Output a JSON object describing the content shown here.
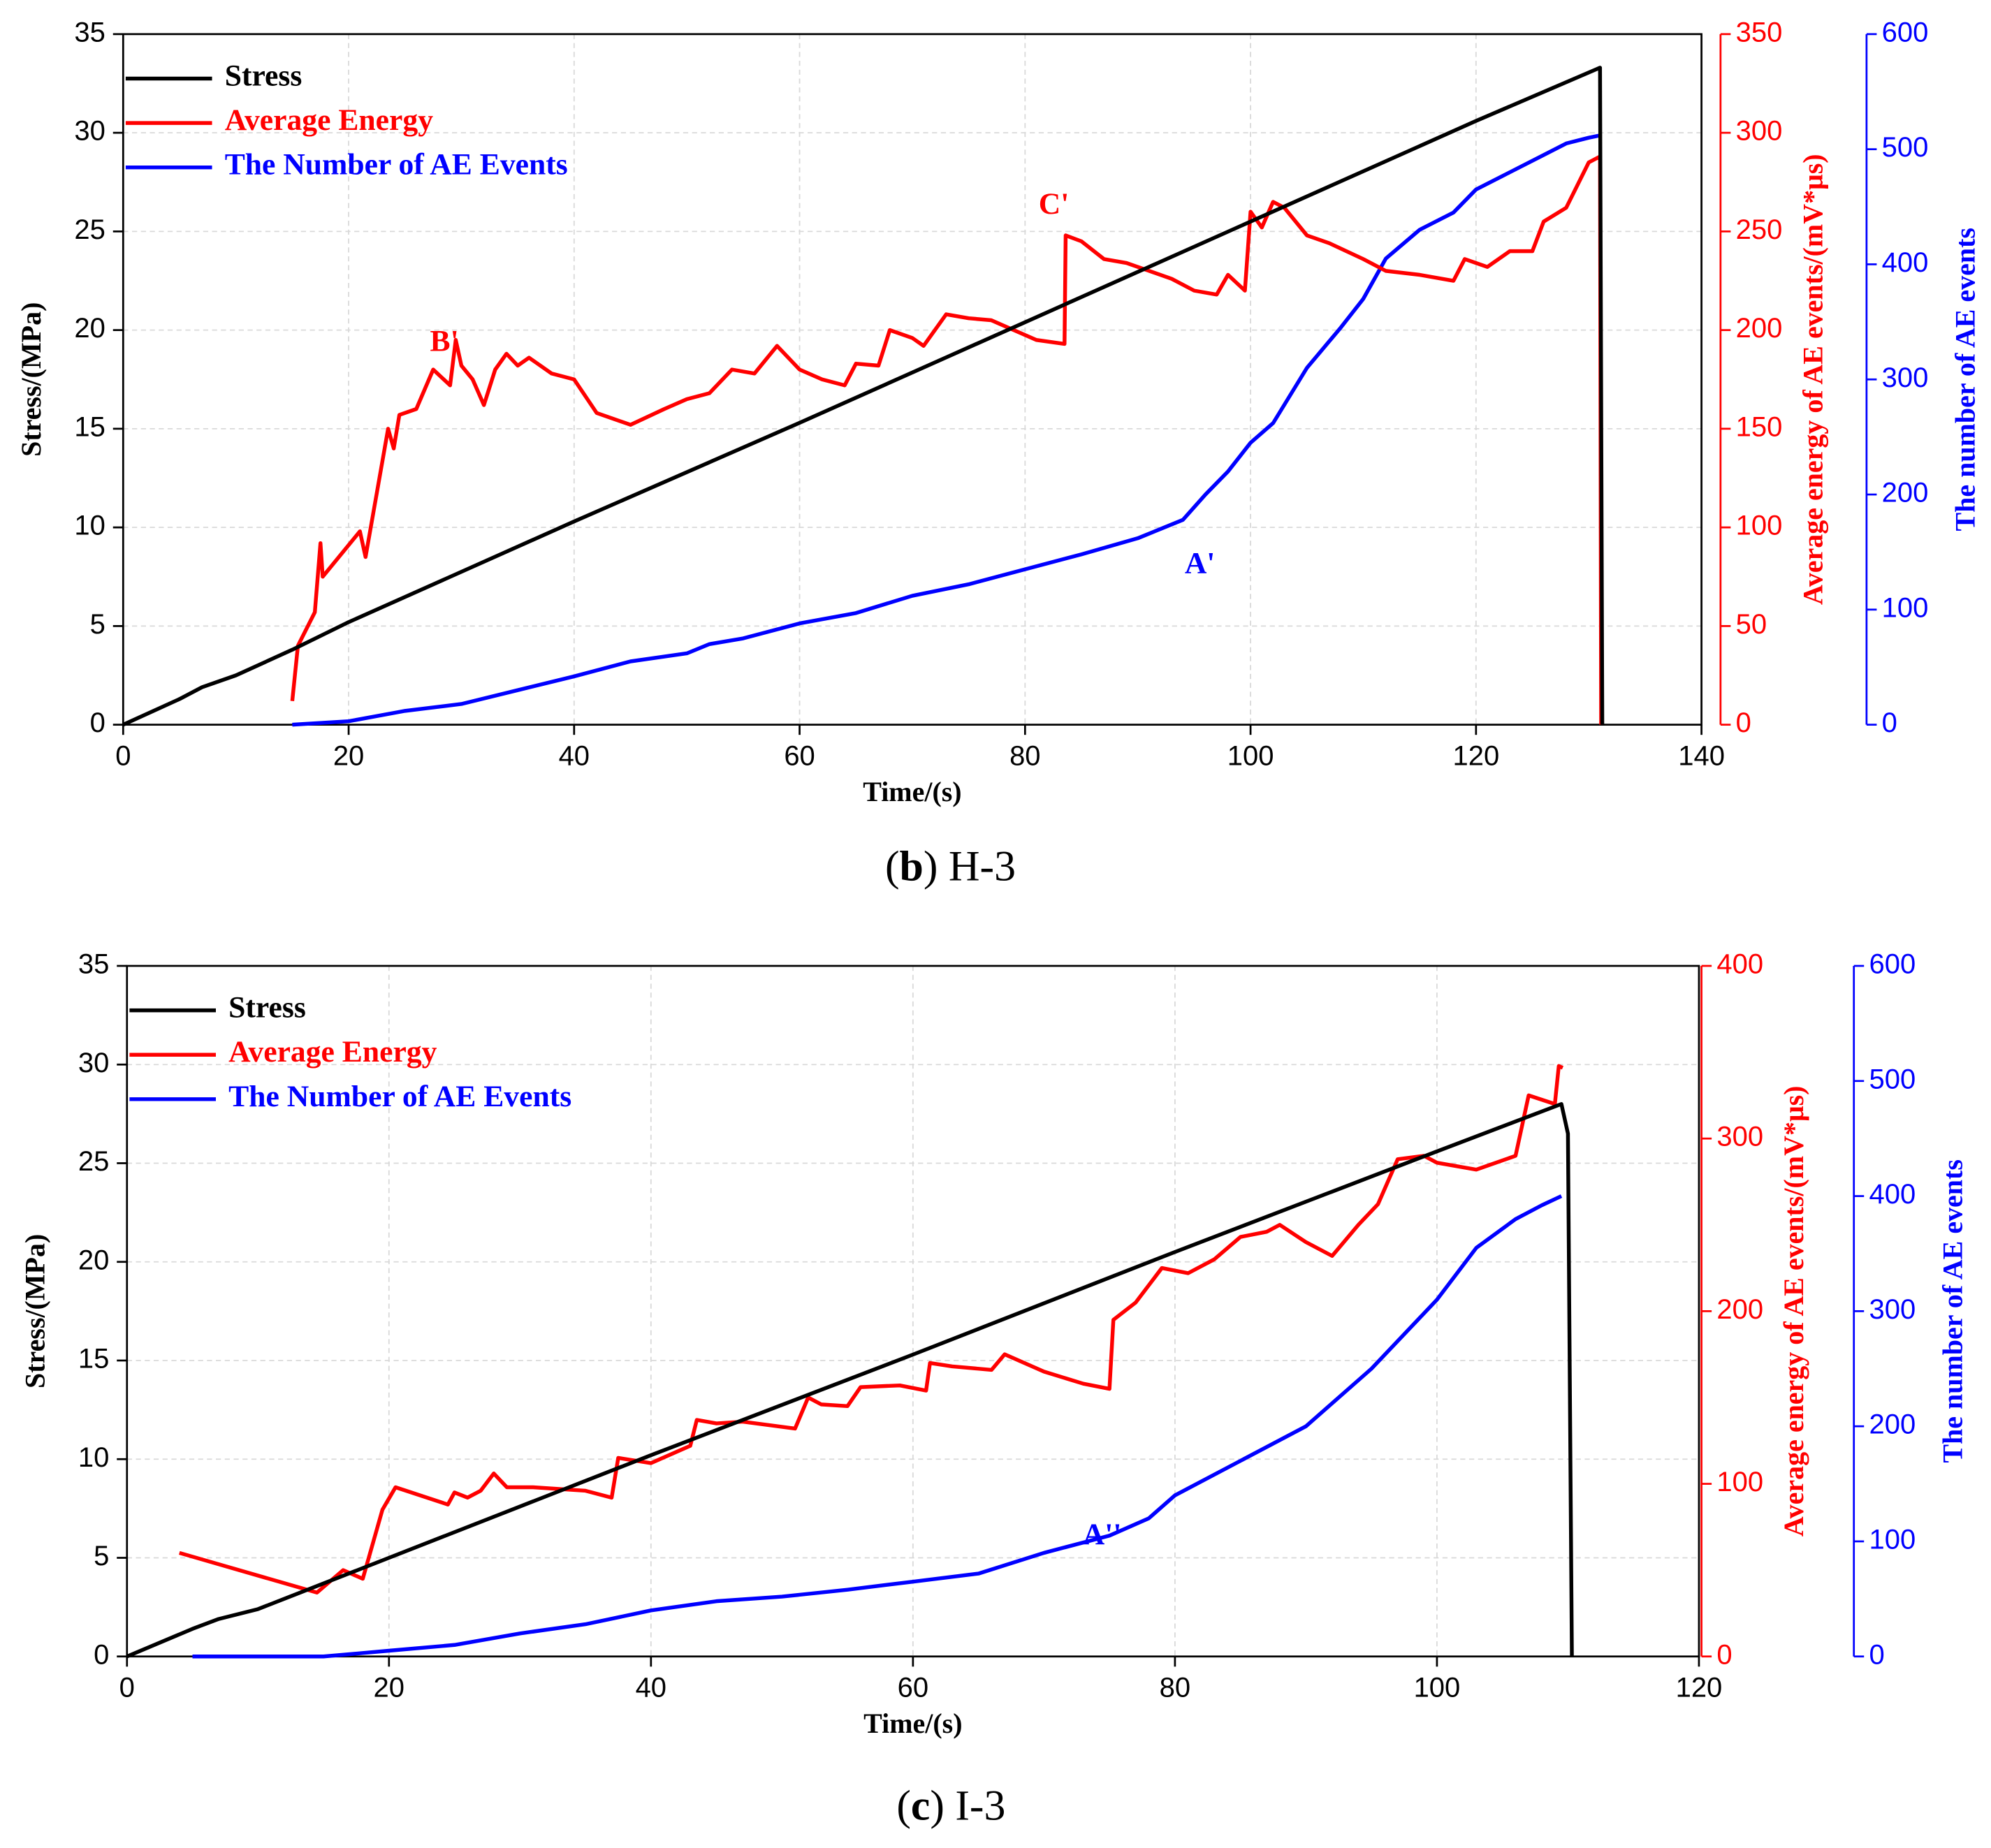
{
  "chart_data": [
    {
      "type": "line",
      "caption": [
        "(",
        "b",
        ") H-3"
      ],
      "xlabel": "Time/(s)",
      "ylabel": "Stress/(MPa)",
      "y2label": "Average energy of AE events/(mV*μs)",
      "y3label": "The number of AE events",
      "xlim": [
        0,
        140
      ],
      "xticks": [
        0,
        20,
        40,
        60,
        80,
        100,
        120,
        140
      ],
      "ylim": [
        0,
        35
      ],
      "yticks": [
        0,
        5,
        10,
        15,
        20,
        25,
        30,
        35
      ],
      "y2lim": [
        0,
        350
      ],
      "y2ticks": [
        0,
        50,
        100,
        150,
        200,
        250,
        300,
        350
      ],
      "y3lim": [
        0,
        600
      ],
      "y3ticks": [
        0,
        100,
        200,
        300,
        400,
        500,
        600
      ],
      "grid": true,
      "legend": "upper left",
      "series": [
        {
          "name": "Stress",
          "color": "#000000",
          "x": [
            0,
            5,
            7,
            10,
            15,
            20,
            40,
            60,
            80,
            100,
            120,
            131,
            131.2
          ],
          "values": [
            0,
            1.3,
            1.9,
            2.5,
            3.8,
            5.2,
            10.3,
            15.3,
            20.4,
            25.5,
            30.6,
            33.3,
            0
          ]
        },
        {
          "name": "Average Energy",
          "color": "#ff0000",
          "axis": "y2",
          "x": [
            15,
            15.5,
            17,
            17.5,
            17.7,
            21,
            21.5,
            23.5,
            24,
            24.5,
            26,
            27.5,
            29,
            29.5,
            30,
            31,
            32,
            33,
            34,
            35,
            36,
            38,
            40,
            42,
            45,
            48,
            50,
            52,
            54,
            56,
            58,
            60,
            62,
            64,
            65,
            67,
            68,
            70,
            71,
            73,
            75,
            77,
            79,
            81,
            83.5,
            83.6,
            85,
            87,
            89,
            91,
            93,
            95,
            97,
            98,
            99.5,
            100,
            101,
            102,
            103,
            105,
            107,
            110,
            112,
            115,
            118,
            119,
            121,
            123,
            125,
            126,
            128,
            130,
            131,
            131.1
          ],
          "values": [
            12,
            40,
            57,
            92,
            75,
            98,
            85,
            150,
            140,
            157,
            160,
            180,
            172,
            195,
            182,
            175,
            162,
            180,
            188,
            182,
            186,
            178,
            175,
            158,
            152,
            160,
            165,
            168,
            180,
            178,
            192,
            180,
            175,
            172,
            183,
            182,
            200,
            196,
            192,
            208,
            206,
            205,
            200,
            195,
            193,
            248,
            245,
            236,
            234,
            230,
            226,
            220,
            218,
            228,
            220,
            260,
            252,
            265,
            262,
            248,
            244,
            236,
            230,
            228,
            225,
            236,
            232,
            240,
            240,
            255,
            262,
            285,
            288,
            0
          ]
        },
        {
          "name": "The Number of AE Events",
          "color": "#0000ff",
          "axis": "y3",
          "x": [
            15,
            20,
            25,
            30,
            35,
            40,
            45,
            50,
            52,
            55,
            60,
            65,
            70,
            75,
            80,
            85,
            90,
            94,
            96,
            98,
            100,
            102,
            105,
            108,
            110,
            112,
            115,
            118,
            120,
            123,
            126,
            128,
            130,
            131
          ],
          "values": [
            0,
            3,
            12,
            18,
            30,
            42,
            55,
            62,
            70,
            75,
            88,
            97,
            112,
            122,
            135,
            148,
            162,
            178,
            200,
            220,
            245,
            262,
            310,
            345,
            370,
            405,
            430,
            445,
            465,
            480,
            495,
            505,
            510,
            512
          ]
        }
      ],
      "annotations": [
        {
          "text": "B'",
          "color": "#ff0000"
        },
        {
          "text": "C'",
          "color": "#ff0000"
        },
        {
          "text": "A'",
          "color": "#0000ff"
        }
      ]
    },
    {
      "type": "line",
      "caption": [
        "(",
        "c",
        ") I-3"
      ],
      "xlabel": "Time/(s)",
      "ylabel": "Stress/(MPa)",
      "y2label": "Average energy of AE events/(mV*μs)",
      "y3label": "The number of AE events",
      "xlim": [
        0,
        120
      ],
      "xticks": [
        0,
        20,
        40,
        60,
        80,
        100,
        120
      ],
      "ylim": [
        0,
        35
      ],
      "yticks": [
        0,
        5,
        10,
        15,
        20,
        25,
        30,
        35
      ],
      "y2lim": [
        0,
        400
      ],
      "y2ticks": [
        0,
        100,
        200,
        300,
        400
      ],
      "y3lim": [
        0,
        600
      ],
      "y3ticks": [
        0,
        100,
        200,
        300,
        400,
        500,
        600
      ],
      "grid": true,
      "legend": "upper left",
      "series": [
        {
          "name": "Stress",
          "color": "#000000",
          "x": [
            0,
            5,
            7,
            10,
            20,
            40,
            60,
            80,
            100,
            109.5,
            110,
            110.3
          ],
          "values": [
            0,
            1.4,
            1.9,
            2.4,
            5,
            10.2,
            15.3,
            20.5,
            25.6,
            28,
            26.5,
            0
          ]
        },
        {
          "name": "Average Energy",
          "color": "#ff0000",
          "axis": "y2",
          "x": [
            4,
            14.5,
            16.5,
            18,
            19.5,
            20.5,
            24.5,
            25,
            26,
            27,
            28,
            29,
            31,
            35,
            37,
            37.5,
            40,
            43,
            43.5,
            45,
            47,
            51,
            52,
            53,
            55,
            56,
            59,
            61,
            61.3,
            63,
            66,
            67,
            70,
            73,
            75,
            75.3,
            77,
            79,
            81,
            83,
            85,
            87,
            88,
            90,
            92,
            94,
            95.5,
            97,
            99,
            100,
            103,
            106,
            107,
            109,
            109.3,
            109.6
          ],
          "values": [
            60,
            37,
            50,
            45,
            85,
            98,
            88,
            95,
            92,
            96,
            106,
            98,
            98,
            96,
            92,
            115,
            112,
            122,
            137,
            135,
            136,
            132,
            150,
            146,
            145,
            156,
            157,
            154,
            170,
            168,
            166,
            175,
            165,
            158,
            155,
            195,
            205,
            225,
            222,
            230,
            243,
            246,
            250,
            240,
            232,
            250,
            262,
            288,
            290,
            286,
            282,
            290,
            325,
            320,
            342,
            341
          ]
        },
        {
          "name": "The Number of AE Events",
          "color": "#0000ff",
          "axis": "y3",
          "x": [
            5,
            15,
            20,
            25,
            30,
            35,
            40,
            45,
            50,
            55,
            60,
            65,
            70,
            75,
            78,
            80,
            85,
            90,
            95,
            100,
            103,
            106,
            108,
            109.5
          ],
          "values": [
            0,
            0,
            5,
            10,
            20,
            28,
            40,
            48,
            52,
            58,
            65,
            72,
            90,
            105,
            120,
            140,
            170,
            200,
            250,
            310,
            355,
            380,
            392,
            400
          ]
        }
      ],
      "annotations": [
        {
          "text": "A''",
          "color": "#0000ff"
        }
      ]
    }
  ]
}
